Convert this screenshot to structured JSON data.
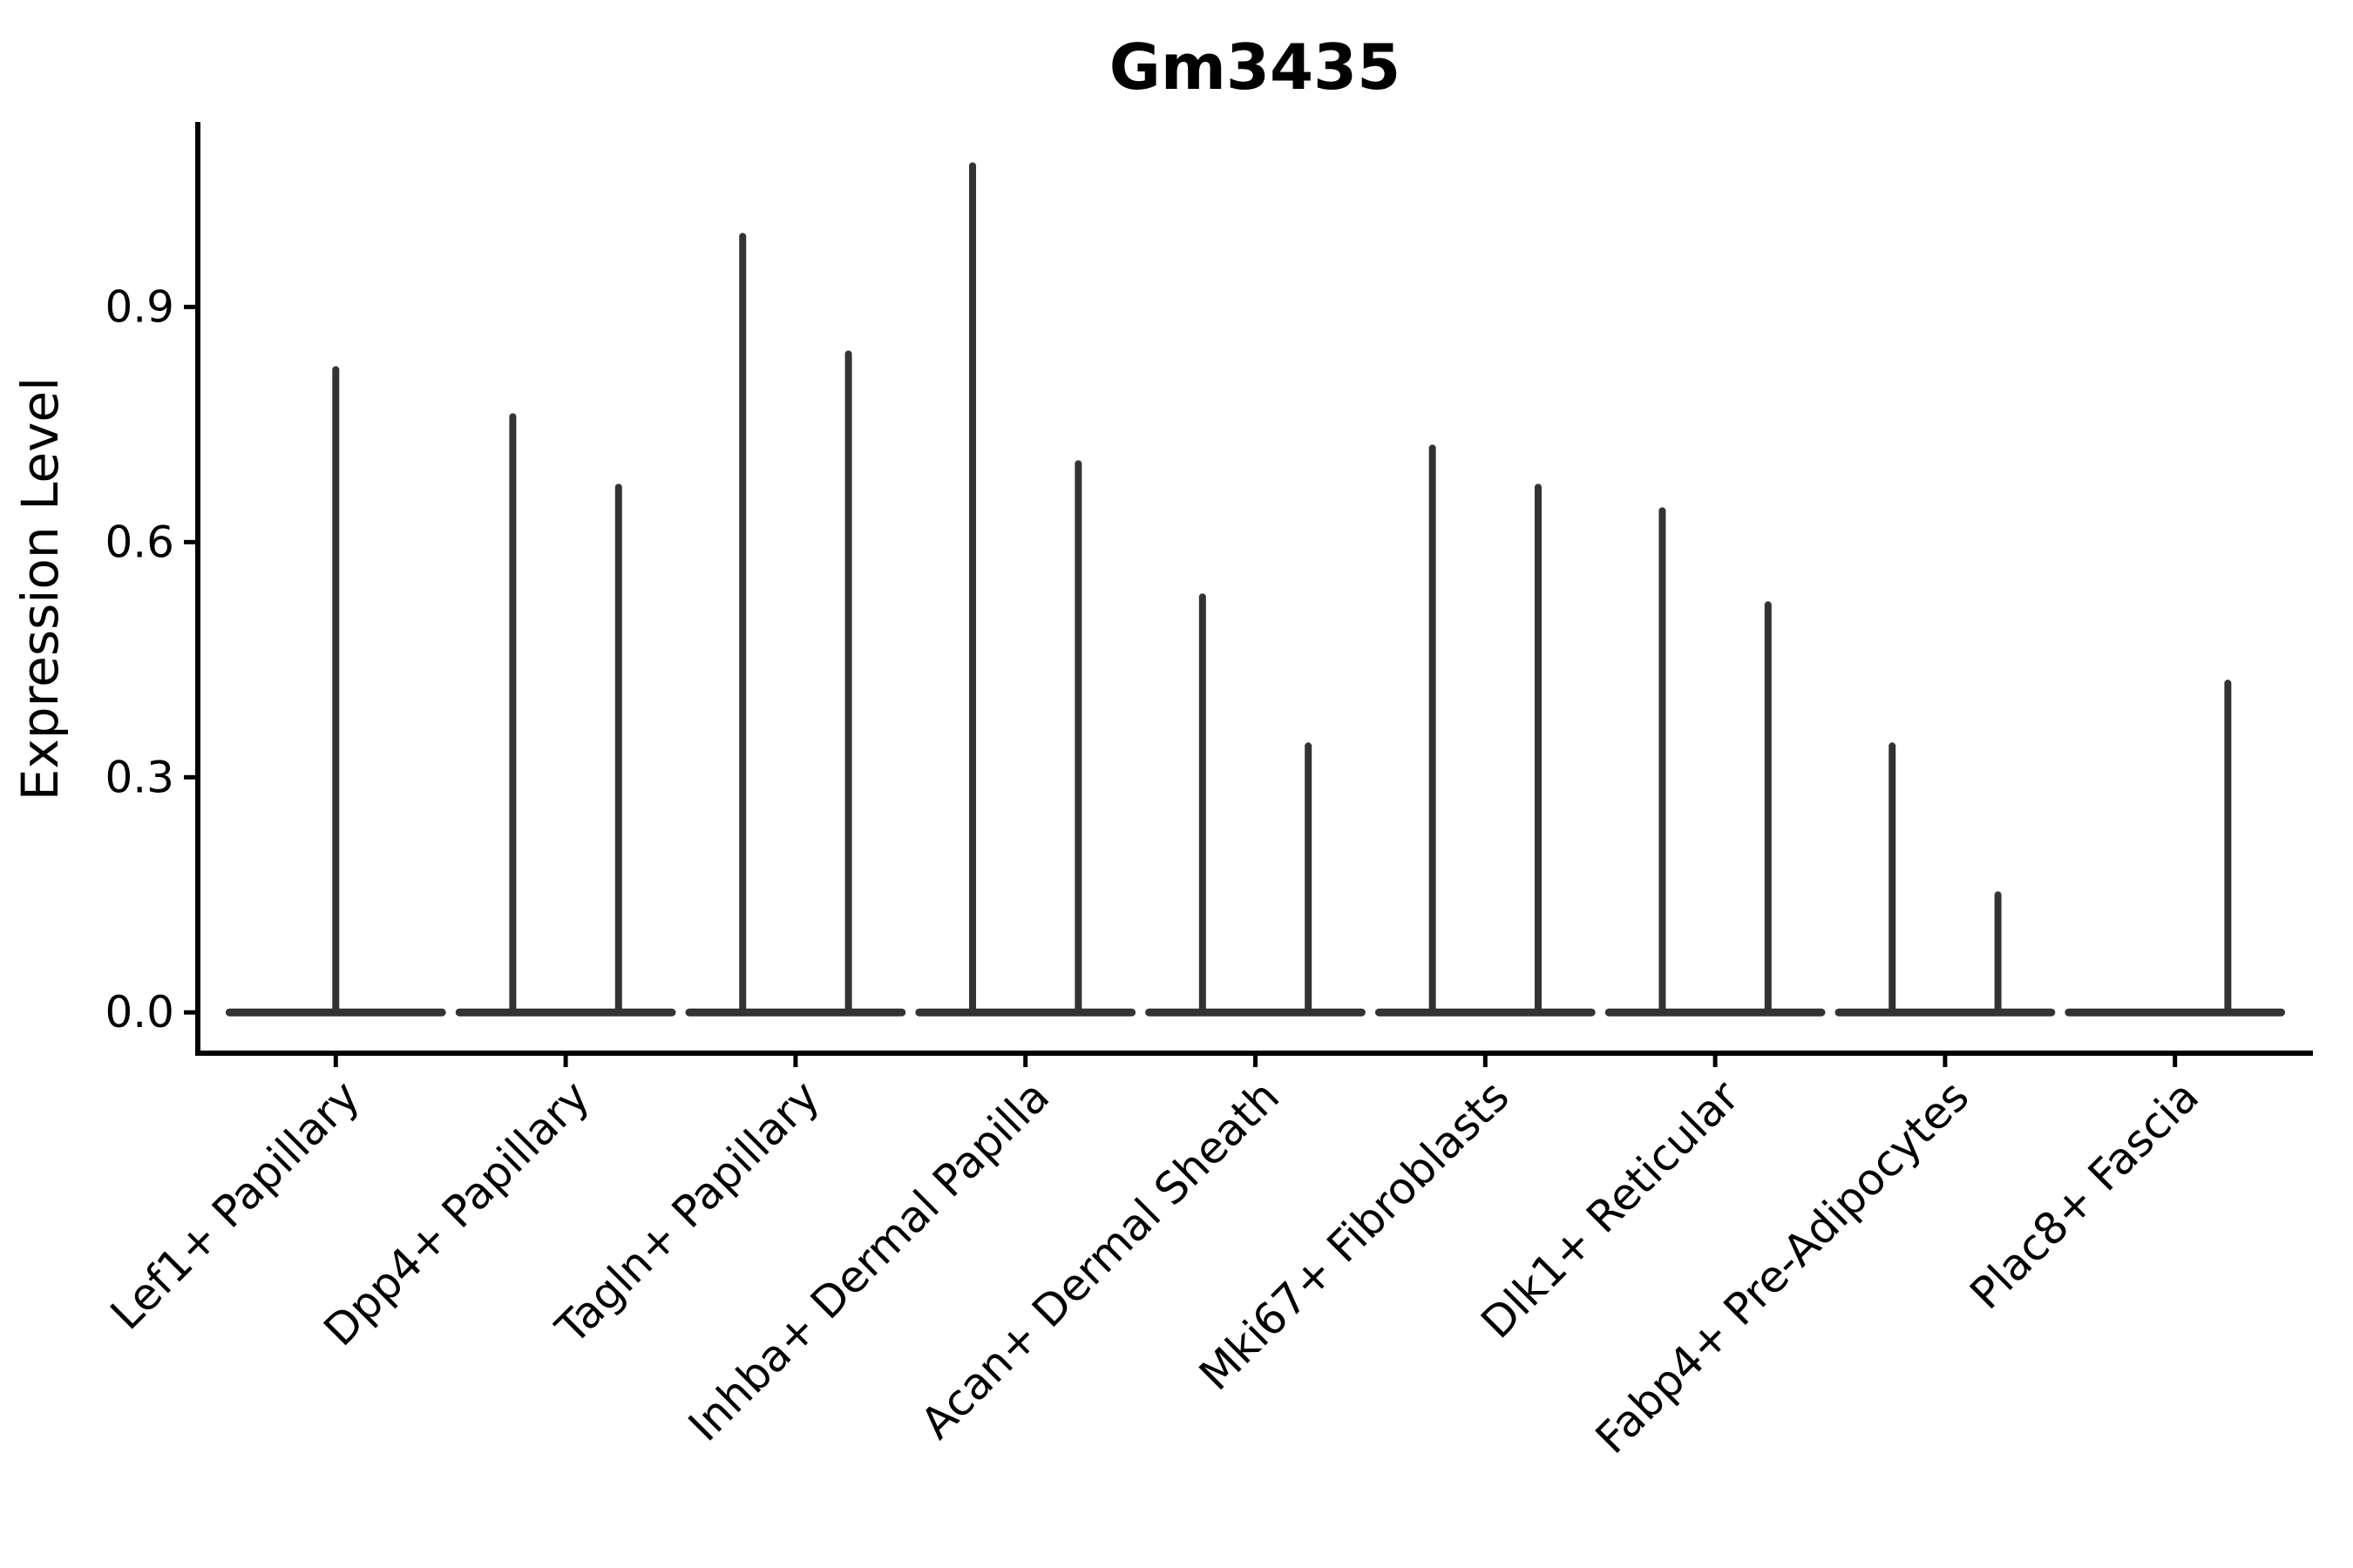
{
  "chart_data": {
    "type": "violin",
    "title": "Gm3435",
    "xlabel": "",
    "ylabel": "Expression Level",
    "legend_position": "none",
    "grid": false,
    "background": "#ffffff",
    "yticks_labels": [
      "0.0",
      "0.3",
      "0.6",
      "0.9"
    ],
    "ytick_values": [
      0.0,
      0.3,
      0.6,
      0.9
    ],
    "ylim": [
      -0.052,
      1.136
    ],
    "categories": [
      "Lef1+ Papillary",
      "Dpp4+ Papillary",
      "Tagln+ Papillary",
      "Inhba+ Dermal Papilla",
      "Acan+ Dermal Sheath",
      "Mki67+ Fibroblasts",
      "Dlk1+ Reticular",
      "Fabp4+ Pre-Adipocytes",
      "Plac8+ Fascia"
    ],
    "violins": [
      {
        "category": "Lef1+ Papillary",
        "body_value": 0.0,
        "spikes": [
          {
            "offset_frac": 0.0,
            "peak": 0.82
          }
        ]
      },
      {
        "category": "Dpp4+ Papillary",
        "body_value": 0.0,
        "spikes": [
          {
            "offset_frac": -0.23,
            "peak": 0.76
          },
          {
            "offset_frac": 0.23,
            "peak": 0.67
          }
        ]
      },
      {
        "category": "Tagln+ Papillary",
        "body_value": 0.0,
        "spikes": [
          {
            "offset_frac": -0.23,
            "peak": 0.99
          },
          {
            "offset_frac": 0.23,
            "peak": 0.84
          }
        ]
      },
      {
        "category": "Inhba+ Dermal Papilla",
        "body_value": 0.0,
        "spikes": [
          {
            "offset_frac": -0.23,
            "peak": 1.08
          },
          {
            "offset_frac": 0.23,
            "peak": 0.7
          }
        ]
      },
      {
        "category": "Acan+ Dermal Sheath",
        "body_value": 0.0,
        "spikes": [
          {
            "offset_frac": -0.23,
            "peak": 0.53
          },
          {
            "offset_frac": 0.23,
            "peak": 0.34
          }
        ]
      },
      {
        "category": "Mki67+ Fibroblasts",
        "body_value": 0.0,
        "spikes": [
          {
            "offset_frac": -0.23,
            "peak": 0.72
          },
          {
            "offset_frac": 0.23,
            "peak": 0.67
          }
        ]
      },
      {
        "category": "Dlk1+ Reticular",
        "body_value": 0.0,
        "spikes": [
          {
            "offset_frac": -0.23,
            "peak": 0.64
          },
          {
            "offset_frac": 0.23,
            "peak": 0.52
          }
        ]
      },
      {
        "category": "Fabp4+ Pre-Adipocytes",
        "body_value": 0.0,
        "spikes": [
          {
            "offset_frac": -0.23,
            "peak": 0.34
          },
          {
            "offset_frac": 0.23,
            "peak": 0.15
          }
        ]
      },
      {
        "category": "Plac8+ Fascia",
        "body_value": 0.0,
        "spikes": [
          {
            "offset_frac": 0.23,
            "peak": 0.42
          }
        ]
      }
    ],
    "violin_body_halfwidth_frac": 0.462,
    "colors": {
      "violin": "#333333",
      "axis": "#000000",
      "text": "#000000",
      "background": "#ffffff"
    }
  }
}
